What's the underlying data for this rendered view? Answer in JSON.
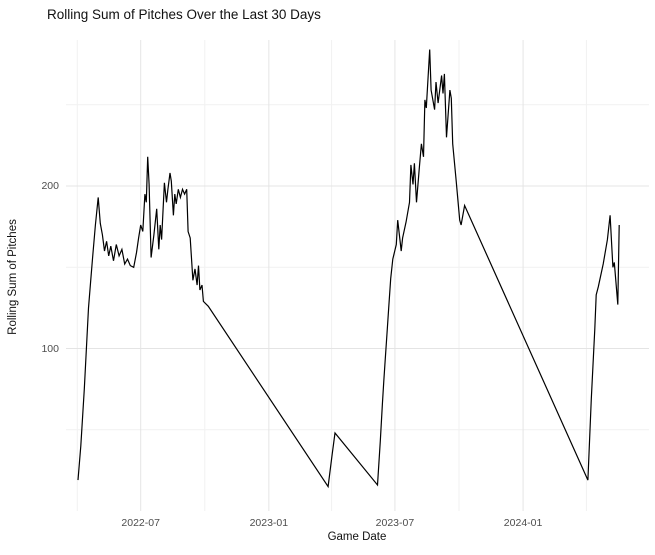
{
  "title": "Rolling Sum of Pitches Over the Last 30 Days",
  "chart_data": {
    "type": "line",
    "title": "Rolling Sum of Pitches Over the Last 30 Days",
    "xlabel": "Game Date",
    "ylabel": "Rolling Sum of Pitches",
    "x_ticks": [
      "2022-07",
      "2023-01",
      "2023-07",
      "2024-01"
    ],
    "x_minor_ticks": [
      "2022-04",
      "2022-10",
      "2023-04",
      "2023-10",
      "2024-04"
    ],
    "y_ticks": [
      100,
      200
    ],
    "y_minor_ticks": [
      50,
      150,
      250
    ],
    "ylim": [
      0,
      288
    ],
    "xlim": [
      "2022-03-24",
      "2024-06-30"
    ],
    "grid": true,
    "legend": "none",
    "line_color": "#000000",
    "grid_major_color": "#e4e4e4",
    "grid_minor_color": "#f1f1f1",
    "series": [
      {
        "name": "rolling_30day_pitch_sum",
        "points": [
          [
            "2022-04-02",
            19
          ],
          [
            "2022-04-06",
            40
          ],
          [
            "2022-04-09",
            61
          ],
          [
            "2022-04-11",
            75
          ],
          [
            "2022-04-14",
            100
          ],
          [
            "2022-04-17",
            125
          ],
          [
            "2022-04-20",
            141
          ],
          [
            "2022-04-23",
            156
          ],
          [
            "2022-04-27",
            176
          ],
          [
            "2022-05-01",
            193
          ],
          [
            "2022-05-04",
            177
          ],
          [
            "2022-05-07",
            170
          ],
          [
            "2022-05-10",
            160
          ],
          [
            "2022-05-13",
            166
          ],
          [
            "2022-05-16",
            157
          ],
          [
            "2022-05-19",
            163
          ],
          [
            "2022-05-23",
            154
          ],
          [
            "2022-05-27",
            164
          ],
          [
            "2022-05-31",
            157
          ],
          [
            "2022-06-04",
            161
          ],
          [
            "2022-06-08",
            152
          ],
          [
            "2022-06-12",
            155
          ],
          [
            "2022-06-16",
            151
          ],
          [
            "2022-06-21",
            150
          ],
          [
            "2022-06-25",
            159
          ],
          [
            "2022-06-28",
            168
          ],
          [
            "2022-07-01",
            176
          ],
          [
            "2022-07-04",
            172
          ],
          [
            "2022-07-07",
            195
          ],
          [
            "2022-07-09",
            190
          ],
          [
            "2022-07-11",
            218
          ],
          [
            "2022-07-13",
            201
          ],
          [
            "2022-07-16",
            156
          ],
          [
            "2022-07-20",
            170
          ],
          [
            "2022-07-24",
            186
          ],
          [
            "2022-07-27",
            161
          ],
          [
            "2022-07-29",
            176
          ],
          [
            "2022-07-31",
            167
          ],
          [
            "2022-08-04",
            202
          ],
          [
            "2022-08-07",
            190
          ],
          [
            "2022-08-09",
            198
          ],
          [
            "2022-08-12",
            208
          ],
          [
            "2022-08-14",
            203
          ],
          [
            "2022-08-17",
            182
          ],
          [
            "2022-08-19",
            195
          ],
          [
            "2022-08-21",
            189
          ],
          [
            "2022-08-24",
            198
          ],
          [
            "2022-08-27",
            193
          ],
          [
            "2022-08-30",
            198
          ],
          [
            "2022-09-02",
            195
          ],
          [
            "2022-09-05",
            198
          ],
          [
            "2022-09-07",
            172
          ],
          [
            "2022-09-10",
            168
          ],
          [
            "2022-09-14",
            142
          ],
          [
            "2022-09-17",
            149
          ],
          [
            "2022-09-20",
            139
          ],
          [
            "2022-09-22",
            151
          ],
          [
            "2022-09-24",
            136
          ],
          [
            "2022-09-27",
            139
          ],
          [
            "2022-09-29",
            129
          ],
          [
            "2022-10-06",
            126
          ],
          [
            "2023-03-27",
            15
          ],
          [
            "2023-04-02",
            35
          ],
          [
            "2023-04-06",
            48
          ],
          [
            "2023-06-06",
            16
          ],
          [
            "2023-06-10",
            43
          ],
          [
            "2023-06-13",
            66
          ],
          [
            "2023-06-15",
            80
          ],
          [
            "2023-06-17",
            93
          ],
          [
            "2023-06-20",
            112
          ],
          [
            "2023-06-22",
            125
          ],
          [
            "2023-06-25",
            143
          ],
          [
            "2023-06-28",
            155
          ],
          [
            "2023-07-03",
            164
          ],
          [
            "2023-07-05",
            179
          ],
          [
            "2023-07-10",
            160
          ],
          [
            "2023-07-12",
            168
          ],
          [
            "2023-07-17",
            178
          ],
          [
            "2023-07-22",
            190
          ],
          [
            "2023-07-24",
            213
          ],
          [
            "2023-07-27",
            201
          ],
          [
            "2023-07-29",
            214
          ],
          [
            "2023-08-01",
            190
          ],
          [
            "2023-08-05",
            211
          ],
          [
            "2023-08-08",
            226
          ],
          [
            "2023-08-11",
            218
          ],
          [
            "2023-08-13",
            253
          ],
          [
            "2023-08-15",
            248
          ],
          [
            "2023-08-20",
            284
          ],
          [
            "2023-08-22",
            259
          ],
          [
            "2023-08-27",
            247
          ],
          [
            "2023-08-29",
            264
          ],
          [
            "2023-09-01",
            251
          ],
          [
            "2023-09-06",
            268
          ],
          [
            "2023-09-08",
            257
          ],
          [
            "2023-09-10",
            269
          ],
          [
            "2023-09-13",
            230
          ],
          [
            "2023-09-18",
            259
          ],
          [
            "2023-09-20",
            254
          ],
          [
            "2023-09-22",
            226
          ],
          [
            "2023-09-27",
            203
          ],
          [
            "2023-10-02",
            179
          ],
          [
            "2023-10-04",
            176
          ],
          [
            "2023-10-09",
            188
          ],
          [
            "2024-04-03",
            19
          ],
          [
            "2024-04-08",
            69
          ],
          [
            "2024-04-13",
            112
          ],
          [
            "2024-04-15",
            133
          ],
          [
            "2024-04-18",
            138
          ],
          [
            "2024-04-25",
            152
          ],
          [
            "2024-05-01",
            167
          ],
          [
            "2024-05-05",
            182
          ],
          [
            "2024-05-09",
            150
          ],
          [
            "2024-05-11",
            153
          ],
          [
            "2024-05-16",
            127
          ],
          [
            "2024-05-18",
            176
          ]
        ]
      }
    ]
  }
}
